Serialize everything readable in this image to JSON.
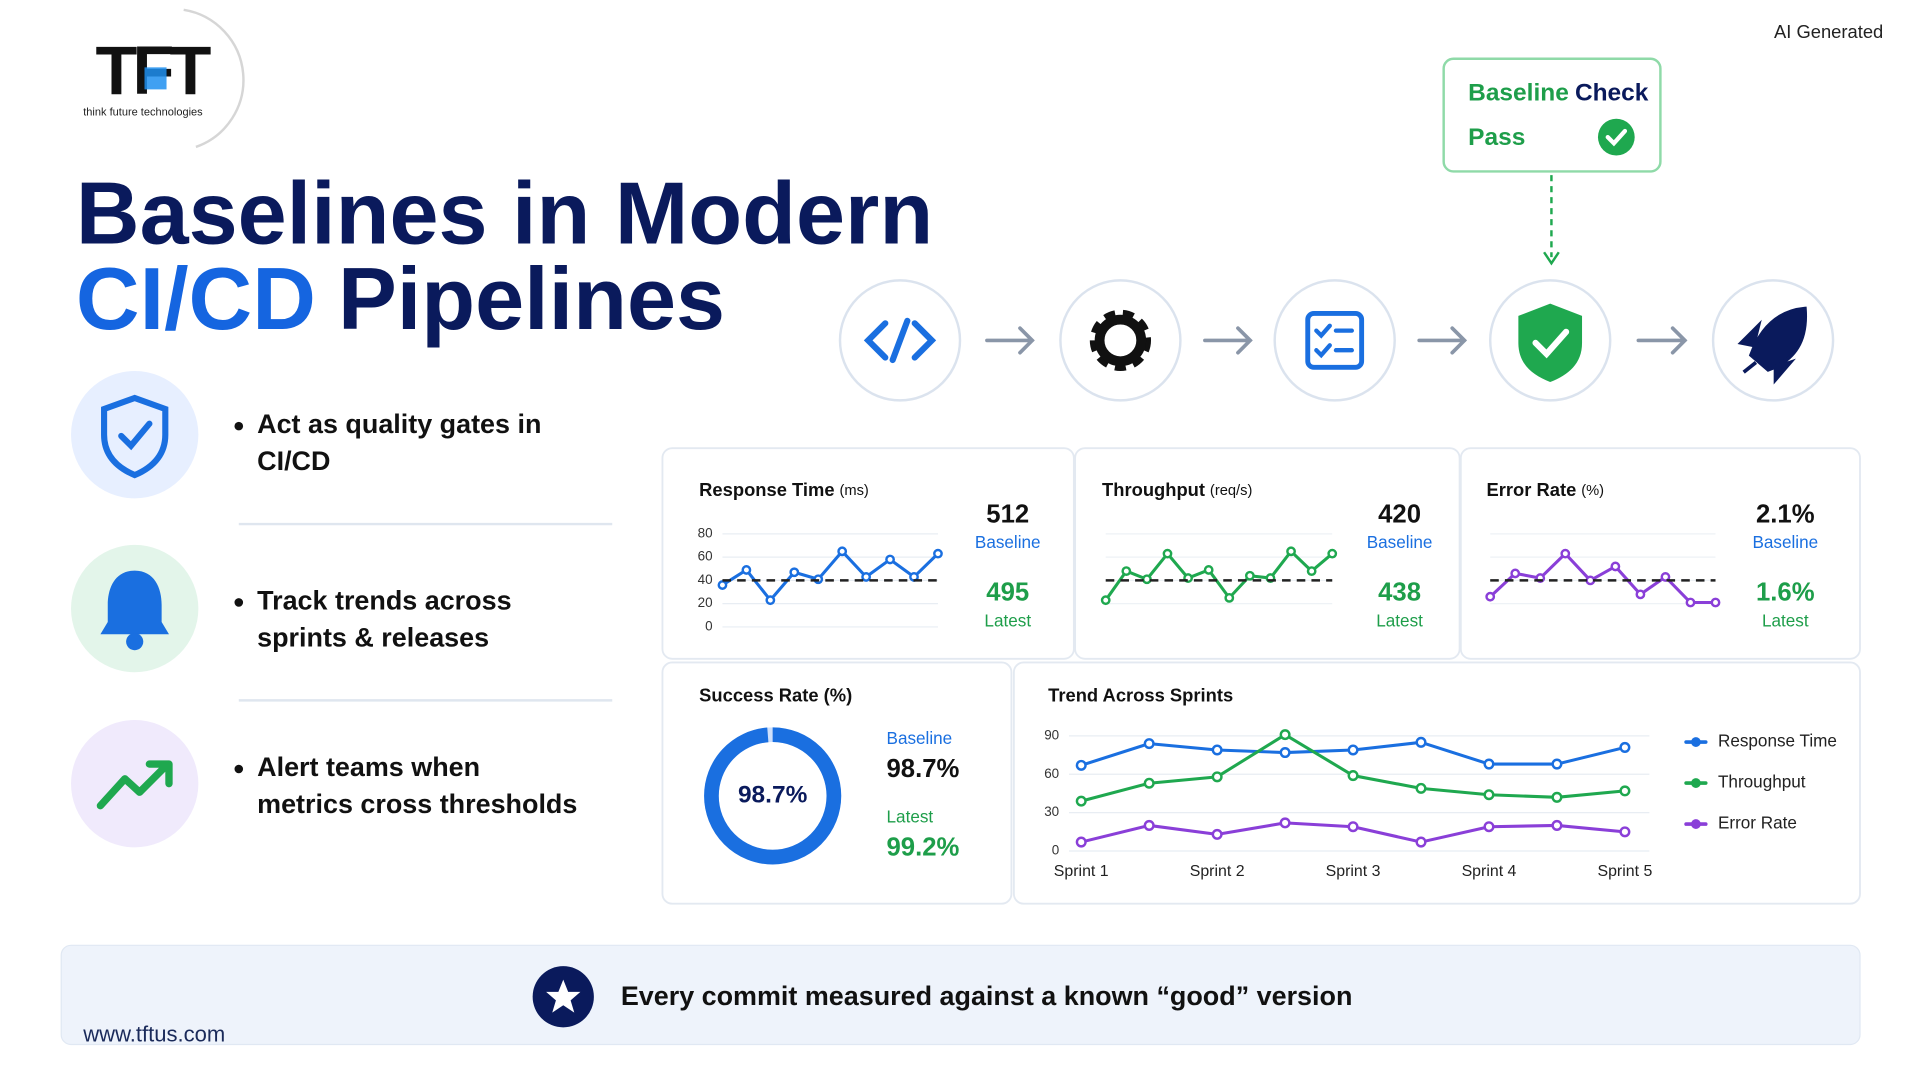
{
  "logo": {
    "mark": "TFT",
    "tagline": "think future technologies"
  },
  "badge": "AI Generated",
  "title": {
    "line1": "Baselines in Modern",
    "accent": "CI/CD",
    "rest": "Pipelines"
  },
  "bullets": [
    [
      "Act as quality gates in",
      "CI/CD"
    ],
    [
      "Track trends across",
      "sprints & releases"
    ],
    [
      "Alert teams when",
      "metrics cross thresholds"
    ]
  ],
  "check": {
    "word1": "Baseline",
    "word2": "Check",
    "status": "Pass"
  },
  "footer": {
    "tagline": "Every commit measured against a known “good” version",
    "url": "www.tftus.com"
  },
  "chart_data": [
    {
      "type": "line",
      "title": "Response Time",
      "unit": "(ms)",
      "values": [
        36,
        49,
        23,
        47,
        41,
        65,
        43,
        58,
        43,
        63
      ],
      "baseline": 40,
      "color": "#1a6fe0",
      "ylim": [
        0,
        80
      ],
      "yticks": [
        0,
        20,
        40,
        60,
        80
      ],
      "grid": true,
      "stats": {
        "baseline_value": "512",
        "baseline_label": "Baseline",
        "latest_value": "495",
        "latest_label": "Latest"
      }
    },
    {
      "type": "line",
      "title": "Throughput",
      "unit": "(req/s)",
      "values": [
        23,
        48,
        41,
        63,
        42,
        49,
        25,
        44,
        42,
        65,
        48,
        63
      ],
      "baseline": 40,
      "color": "#1fa84f",
      "ylim": [
        0,
        80
      ],
      "grid": true,
      "stats": {
        "baseline_value": "420",
        "baseline_label": "Baseline",
        "latest_value": "438",
        "latest_label": "Latest"
      }
    },
    {
      "type": "line",
      "title": "Error Rate",
      "unit": "(%)",
      "values": [
        26,
        46,
        42,
        63,
        40,
        52,
        28,
        43,
        21,
        21
      ],
      "baseline": 40,
      "color": "#8a3fd8",
      "ylim": [
        0,
        80
      ],
      "grid": true,
      "stats": {
        "baseline_value": "2.1%",
        "baseline_label": "Baseline",
        "latest_value": "1.6%",
        "latest_label": "Latest"
      }
    },
    {
      "type": "donut",
      "title": "Success Rate (%)",
      "values": [
        98.7
      ],
      "value_labels": [
        "98.7%"
      ],
      "ylim": [
        0,
        100
      ],
      "color": "#1a6fe0",
      "stats": {
        "baseline_label": "Baseline",
        "baseline_value": "98.7%",
        "latest_label": "Latest",
        "latest_value": "99.2%"
      }
    },
    {
      "type": "trend",
      "title": "Trend Across Sprints",
      "x": [
        1,
        1.5,
        2,
        2.5,
        3,
        3.5,
        4,
        4.5,
        5
      ],
      "xlim": [
        1,
        5
      ],
      "xticks": [
        {
          "value": 1,
          "label": "Sprint 1"
        },
        {
          "value": 2,
          "label": "Sprint 2"
        },
        {
          "value": 3,
          "label": "Sprint 3"
        },
        {
          "value": 4,
          "label": "Sprint 4"
        },
        {
          "value": 5,
          "label": "Sprint 5"
        }
      ],
      "ylim": [
        0,
        90
      ],
      "yticks": [
        0,
        30,
        60,
        90
      ],
      "grid": true,
      "legend": "right",
      "series": [
        {
          "name": "Response Time",
          "color": "#1a6fe0",
          "values": [
            67,
            84,
            79,
            77,
            79,
            85,
            68,
            68,
            81
          ]
        },
        {
          "name": "Throughput",
          "color": "#1fa84f",
          "values": [
            39,
            53,
            58,
            91,
            59,
            49,
            44,
            42,
            47
          ]
        },
        {
          "name": "Error Rate",
          "color": "#8a3fd8",
          "values": [
            7,
            20,
            13,
            22,
            19,
            7,
            19,
            20,
            15
          ]
        }
      ]
    }
  ]
}
